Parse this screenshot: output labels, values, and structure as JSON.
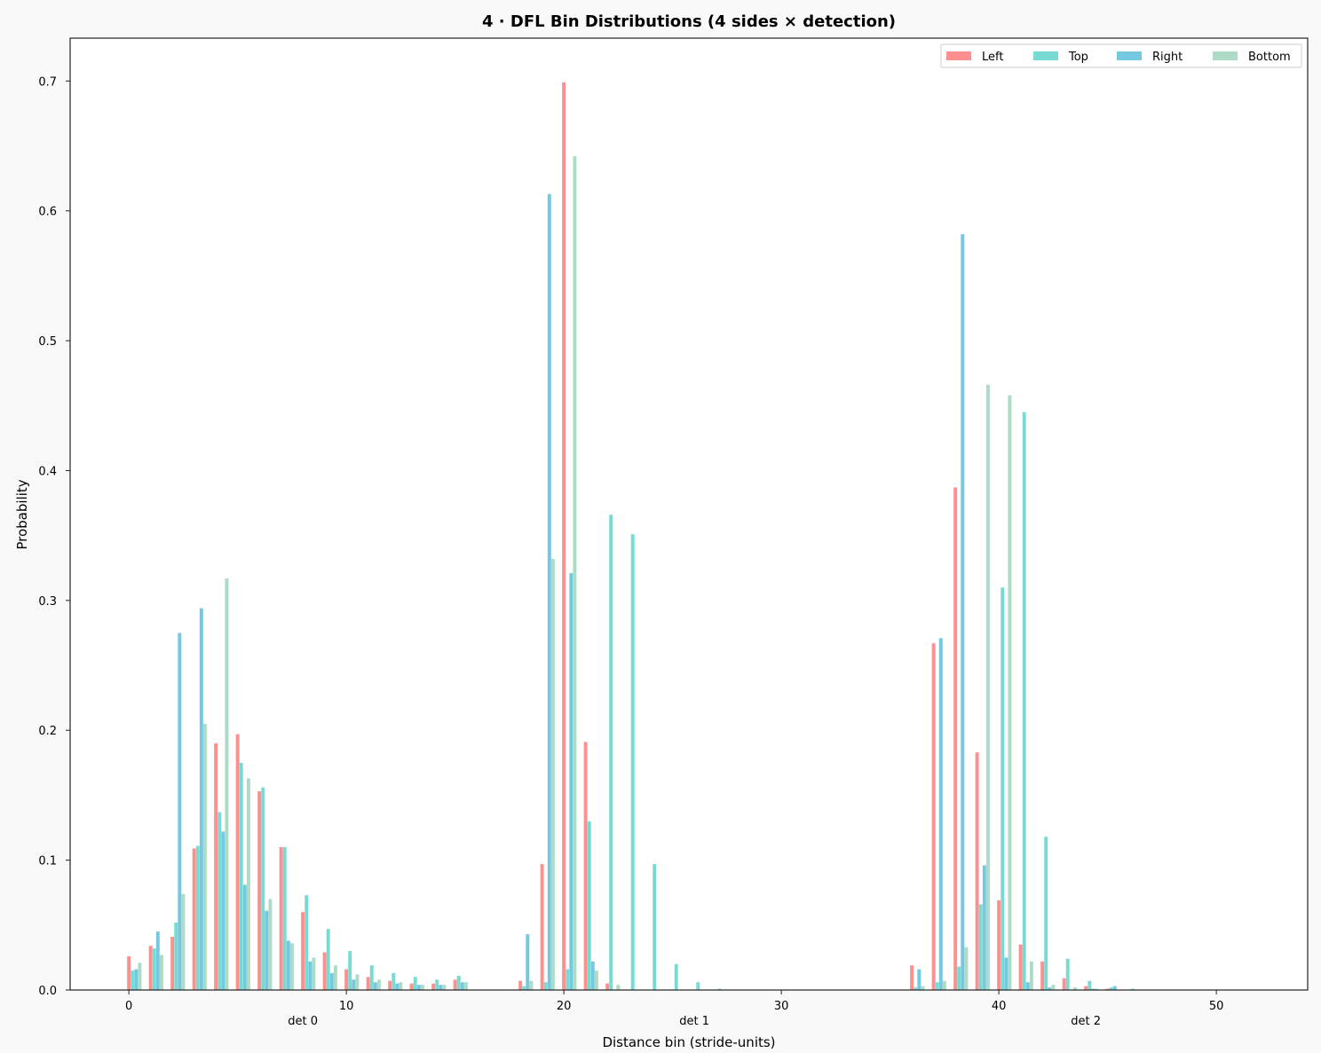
{
  "chart_data": {
    "type": "bar",
    "title": "4 · DFL Bin Distributions (4 sides × detection)",
    "xlabel": "Distance bin (stride-units)",
    "ylabel": "Probability",
    "xlim": [
      -2.7,
      54.2
    ],
    "ylim": [
      0,
      0.733
    ],
    "x_ticks": [
      0,
      10,
      20,
      30,
      40,
      50
    ],
    "y_ticks": [
      0.0,
      0.1,
      0.2,
      0.3,
      0.4,
      0.5,
      0.6,
      0.7
    ],
    "grid": false,
    "legend_position": "top-right",
    "group_labels": [
      {
        "label": "det 0",
        "x": 8
      },
      {
        "label": "det 1",
        "x": 26
      },
      {
        "label": "det 2",
        "x": 44
      }
    ],
    "bins": [
      0,
      1,
      2,
      3,
      4,
      5,
      6,
      7,
      8,
      9,
      10,
      11,
      12,
      13,
      14,
      15,
      18,
      19,
      20,
      21,
      22,
      23,
      24,
      25,
      26,
      27,
      28,
      29,
      30,
      31,
      32,
      33,
      36,
      37,
      38,
      39,
      40,
      41,
      42,
      43,
      44,
      45,
      46,
      47,
      48,
      49,
      50,
      51
    ],
    "series": [
      {
        "name": "Left",
        "color": "#fd8f8f",
        "values": [
          0.026,
          0.034,
          0.041,
          0.109,
          0.19,
          0.197,
          0.153,
          0.11,
          0.06,
          0.029,
          0.016,
          0.01,
          0.007,
          0.005,
          0.005,
          0.008,
          0.007,
          0.097,
          0.699,
          0.191,
          0.005,
          0,
          0,
          0,
          0,
          0,
          0,
          0,
          0,
          0,
          0,
          0,
          0.019,
          0.267,
          0.387,
          0.183,
          0.069,
          0.035,
          0.022,
          0.009,
          0.003,
          0.001,
          0,
          0,
          0,
          0,
          0,
          0
        ]
      },
      {
        "name": "Top",
        "color": "#78dbd3",
        "values": [
          0.015,
          0.032,
          0.052,
          0.111,
          0.137,
          0.175,
          0.156,
          0.11,
          0.073,
          0.047,
          0.03,
          0.019,
          0.013,
          0.01,
          0.008,
          0.011,
          0.003,
          0.006,
          0.016,
          0.13,
          0.366,
          0.351,
          0.097,
          0.02,
          0.006,
          0.001,
          0,
          0,
          0,
          0,
          0,
          0,
          0.002,
          0.006,
          0.018,
          0.066,
          0.31,
          0.445,
          0.118,
          0.024,
          0.007,
          0.002,
          0.001,
          0,
          0,
          0,
          0,
          0
        ]
      },
      {
        "name": "Right",
        "color": "#74c8e0",
        "values": [
          0.016,
          0.045,
          0.275,
          0.294,
          0.122,
          0.081,
          0.061,
          0.038,
          0.022,
          0.013,
          0.008,
          0.006,
          0.005,
          0.004,
          0.004,
          0.006,
          0.043,
          0.613,
          0.321,
          0.022,
          0,
          0,
          0,
          0,
          0,
          0,
          0,
          0,
          0,
          0,
          0,
          0,
          0.016,
          0.271,
          0.582,
          0.096,
          0.025,
          0.006,
          0.002,
          0,
          0.001,
          0.003,
          0,
          0,
          0,
          0,
          0,
          0
        ]
      },
      {
        "name": "Bottom",
        "color": "#addbc6",
        "values": [
          0.021,
          0.027,
          0.074,
          0.205,
          0.317,
          0.163,
          0.07,
          0.036,
          0.025,
          0.019,
          0.012,
          0.008,
          0.006,
          0.004,
          0.004,
          0.006,
          0.007,
          0.332,
          0.642,
          0.015,
          0.004,
          0,
          0,
          0,
          0,
          0,
          0,
          0,
          0,
          0,
          0,
          0,
          0.003,
          0.007,
          0.033,
          0.466,
          0.458,
          0.022,
          0.004,
          0.002,
          0.001,
          0,
          0,
          0,
          0,
          0,
          0,
          0
        ]
      }
    ]
  }
}
